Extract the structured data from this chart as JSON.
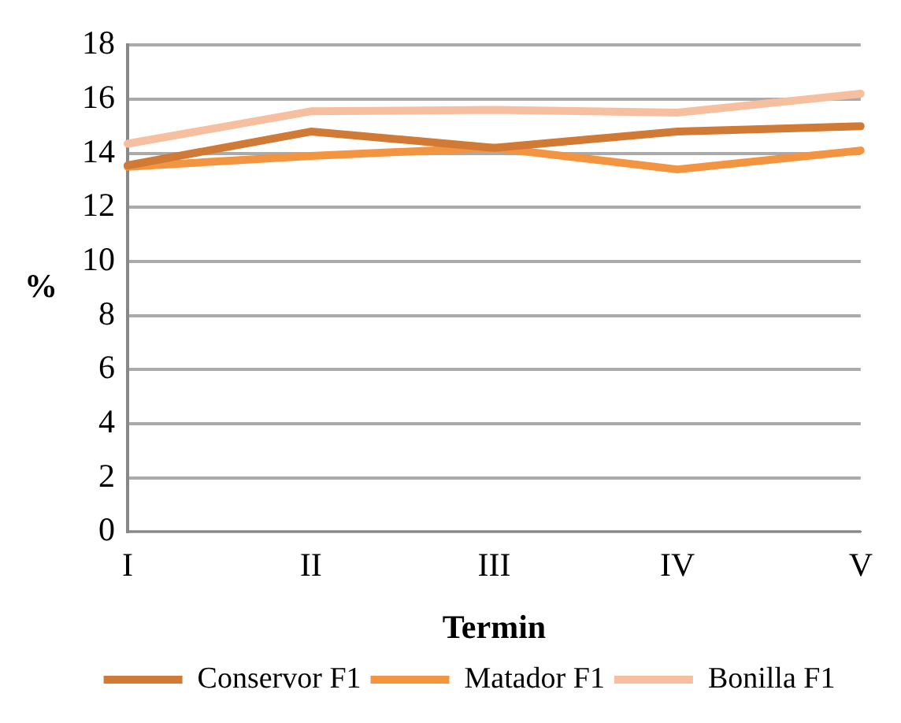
{
  "chart_data": {
    "type": "line",
    "xlabel": "Termin",
    "ylabel": "%",
    "categories": [
      "I",
      "II",
      "III",
      "IV",
      "V"
    ],
    "series": [
      {
        "name": "Conservor F1",
        "color": "#d07a35",
        "values": [
          13.55,
          14.8,
          14.2,
          14.8,
          15.0
        ]
      },
      {
        "name": "Matador F1",
        "color": "#f39440",
        "values": [
          13.5,
          13.9,
          14.2,
          13.4,
          14.1
        ]
      },
      {
        "name": "Bonilla F1",
        "color": "#f6c0a0",
        "values": [
          14.35,
          15.55,
          15.6,
          15.5,
          16.2
        ]
      }
    ],
    "ylim": [
      0,
      18
    ],
    "yticks": [
      0,
      2,
      4,
      6,
      8,
      10,
      12,
      14,
      16,
      18
    ],
    "grid": "y",
    "legend": "bottom",
    "marker": "none",
    "line_style": "solid"
  }
}
